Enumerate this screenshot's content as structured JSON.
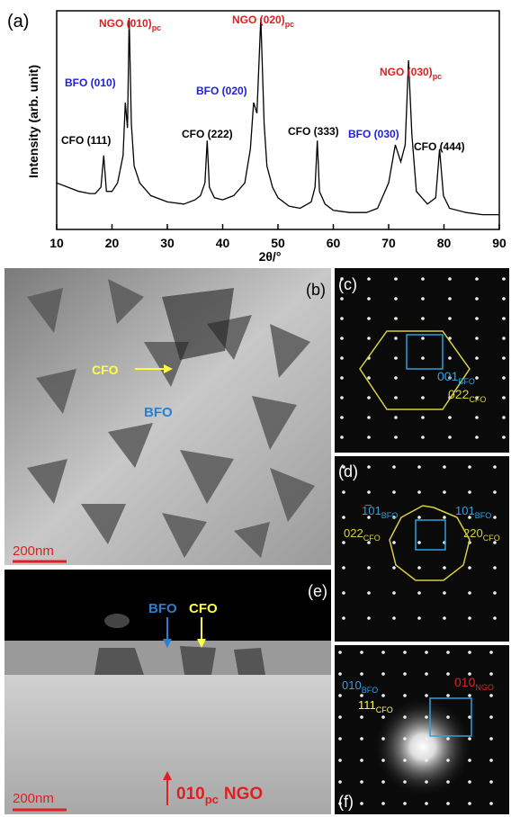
{
  "chart_data": {
    "type": "line",
    "panel_label": "(a)",
    "x_label": "2θ/°",
    "y_label": "Intensity (arb. unit)",
    "x": [
      10,
      12,
      14,
      16,
      17,
      18,
      18.5,
      19,
      20,
      21,
      22,
      22.4,
      22.8,
      23.1,
      23.5,
      24,
      25,
      27,
      30,
      33,
      35,
      36,
      36.8,
      37.2,
      37.6,
      38.5,
      40,
      42,
      44,
      45,
      45.6,
      46.2,
      46.9,
      47.5,
      48,
      49,
      50,
      52,
      54,
      56,
      56.7,
      57.1,
      57.5,
      58.5,
      60,
      63,
      66,
      68,
      70,
      71.2,
      72.2,
      73,
      73.6,
      74.2,
      75,
      77,
      78.5,
      79.2,
      79.9,
      81,
      84,
      87,
      90
    ],
    "values": [
      22,
      20,
      18,
      17,
      17,
      20,
      35,
      18,
      18,
      22,
      35,
      60,
      48,
      100,
      50,
      30,
      22,
      16,
      13,
      12,
      14,
      16,
      22,
      42,
      20,
      15,
      14,
      16,
      22,
      38,
      60,
      55,
      100,
      50,
      30,
      20,
      15,
      11,
      10,
      13,
      20,
      42,
      18,
      12,
      9,
      8,
      8,
      10,
      22,
      40,
      32,
      40,
      80,
      45,
      18,
      12,
      15,
      38,
      16,
      10,
      8,
      7,
      7
    ],
    "color": "#000000",
    "xlim": [
      10,
      90
    ],
    "xticks": [
      10,
      20,
      30,
      40,
      50,
      60,
      70,
      80,
      90
    ],
    "ylim": [
      0,
      100
    ],
    "annotations": [
      {
        "text": "NGO (010)",
        "sub": "pc",
        "color": "#e02020"
      },
      {
        "text": "BFO (010)",
        "color": "#2020e0"
      },
      {
        "text": "CFO (111)",
        "color": "#000000"
      },
      {
        "text": "BFO (020)",
        "color": "#2020e0"
      },
      {
        "text": "NGO (020)",
        "sub": "pc",
        "color": "#e02020"
      },
      {
        "text": "CFO (222)",
        "color": "#000000"
      },
      {
        "text": "CFO (333)",
        "color": "#000000"
      },
      {
        "text": "BFO (030)",
        "color": "#2020e0"
      },
      {
        "text": "NGO (030)",
        "sub": "pc",
        "color": "#e02020"
      },
      {
        "text": "CFO (444)",
        "color": "#000000"
      }
    ]
  },
  "panels": {
    "b": {
      "label": "(b)",
      "cfo": "CFO",
      "bfo": "BFO",
      "scale": "200nm"
    },
    "c": {
      "label": "(c)",
      "t1": "001",
      "t1sub": "BFO",
      "t2": "022",
      "t2sub": "CFO"
    },
    "d": {
      "label": "(d)",
      "t1": "1̅01",
      "t1sub": "BFO",
      "t2": "022",
      "t2sub": "CFO",
      "t3": "101",
      "t3sub": "BFO",
      "t4": "220",
      "t4sub": "CFO"
    },
    "e": {
      "label": "(e)",
      "bfo": "BFO",
      "cfo": "CFO",
      "scale": "200nm",
      "dir": "010",
      "dirsub": "pc",
      "dirtail": "NGO"
    },
    "f": {
      "label": "(f)",
      "t1": "010",
      "t1sub": "BFO",
      "t2": "010",
      "t2sub": "NGO",
      "t3": "111",
      "t3sub": "CFO"
    }
  }
}
